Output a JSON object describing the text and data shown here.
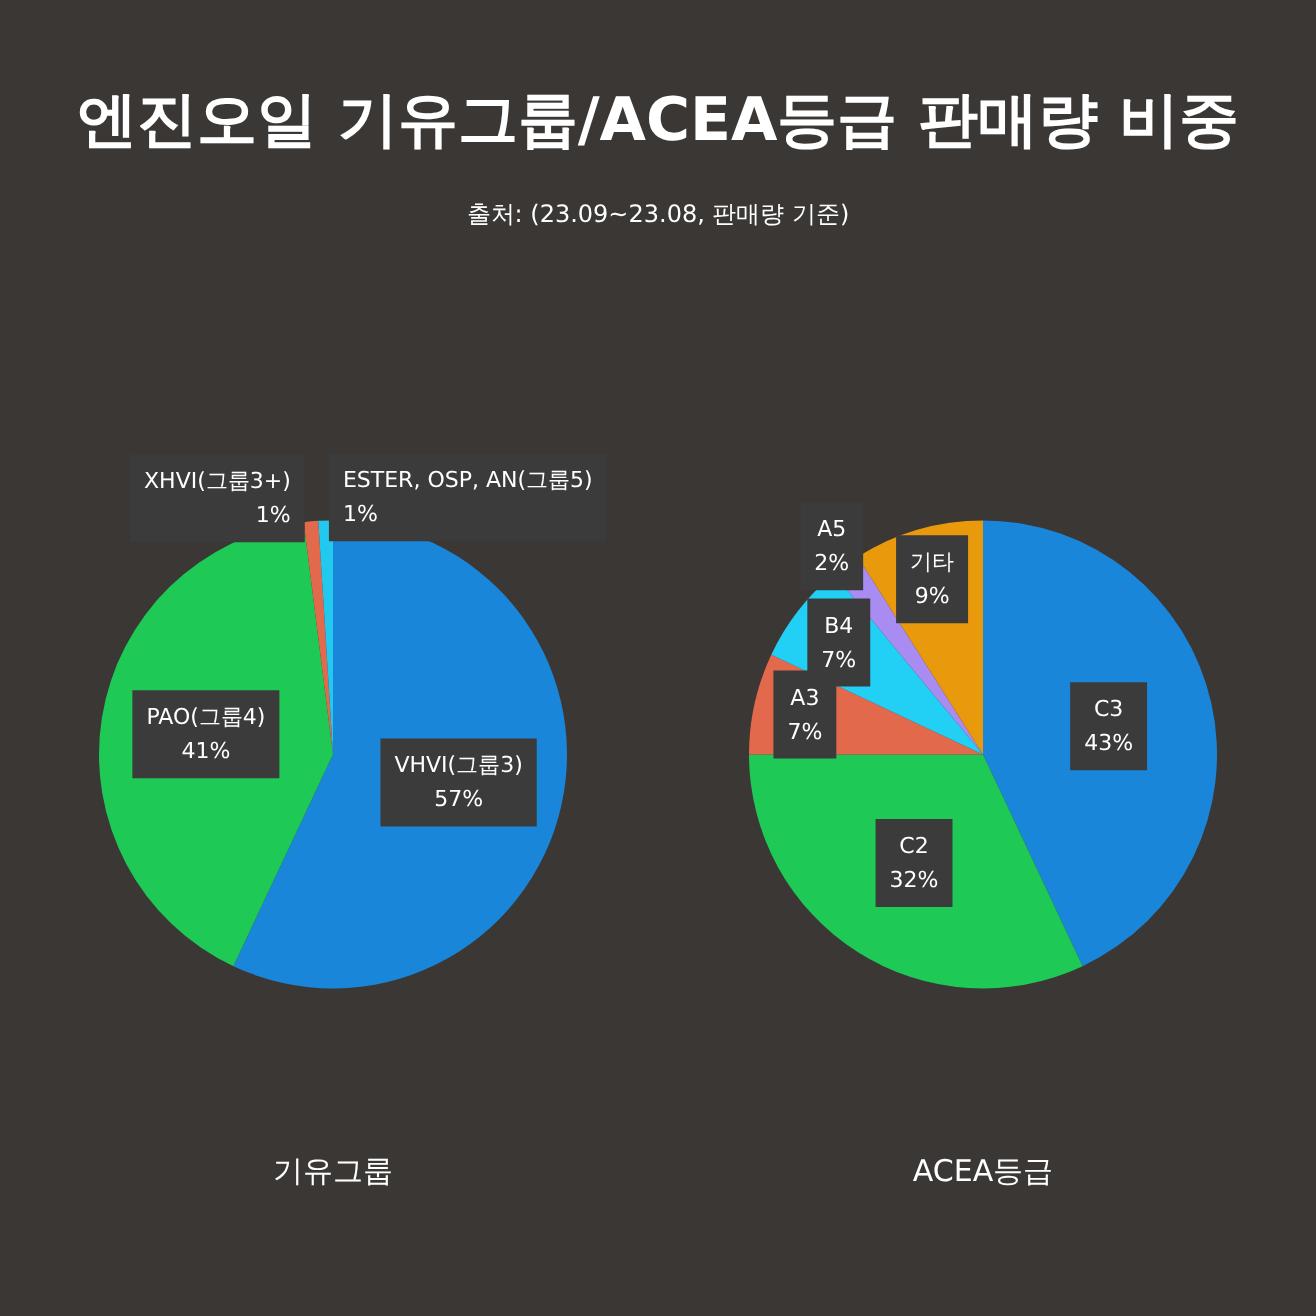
{
  "chart_data": [
    {
      "type": "pie",
      "title": "엔진오일 기유그룹/ACEA등급 판매량 비중",
      "subtitle": "출처: (23.09~23.08, 판매량 기준)",
      "xlabel": "기유그룹",
      "categories": [
        "VHVI(그룹3)",
        "PAO(그룹4)",
        "XHVI(그룹3+)",
        "ESTER, OSP, AN(그룹5)"
      ],
      "values": [
        57,
        41,
        1,
        1
      ],
      "value_labels": [
        "57%",
        "41%",
        "1%",
        "1%"
      ],
      "colors": [
        "#1a86d9",
        "#1ec956",
        "#e2694c",
        "#22c8ee"
      ],
      "legend": false
    },
    {
      "type": "pie",
      "xlabel": "ACEA등급",
      "categories": [
        "C3",
        "C2",
        "A3",
        "B4",
        "A5",
        "기타"
      ],
      "values": [
        43,
        32,
        7,
        7,
        2,
        9
      ],
      "value_labels": [
        "43%",
        "32%",
        "7%",
        "7%",
        "2%",
        "9%"
      ],
      "colors": [
        "#1a86d9",
        "#1ec956",
        "#e2694c",
        "#22d0f5",
        "#a98cf2",
        "#e8990c"
      ],
      "legend": false
    }
  ]
}
